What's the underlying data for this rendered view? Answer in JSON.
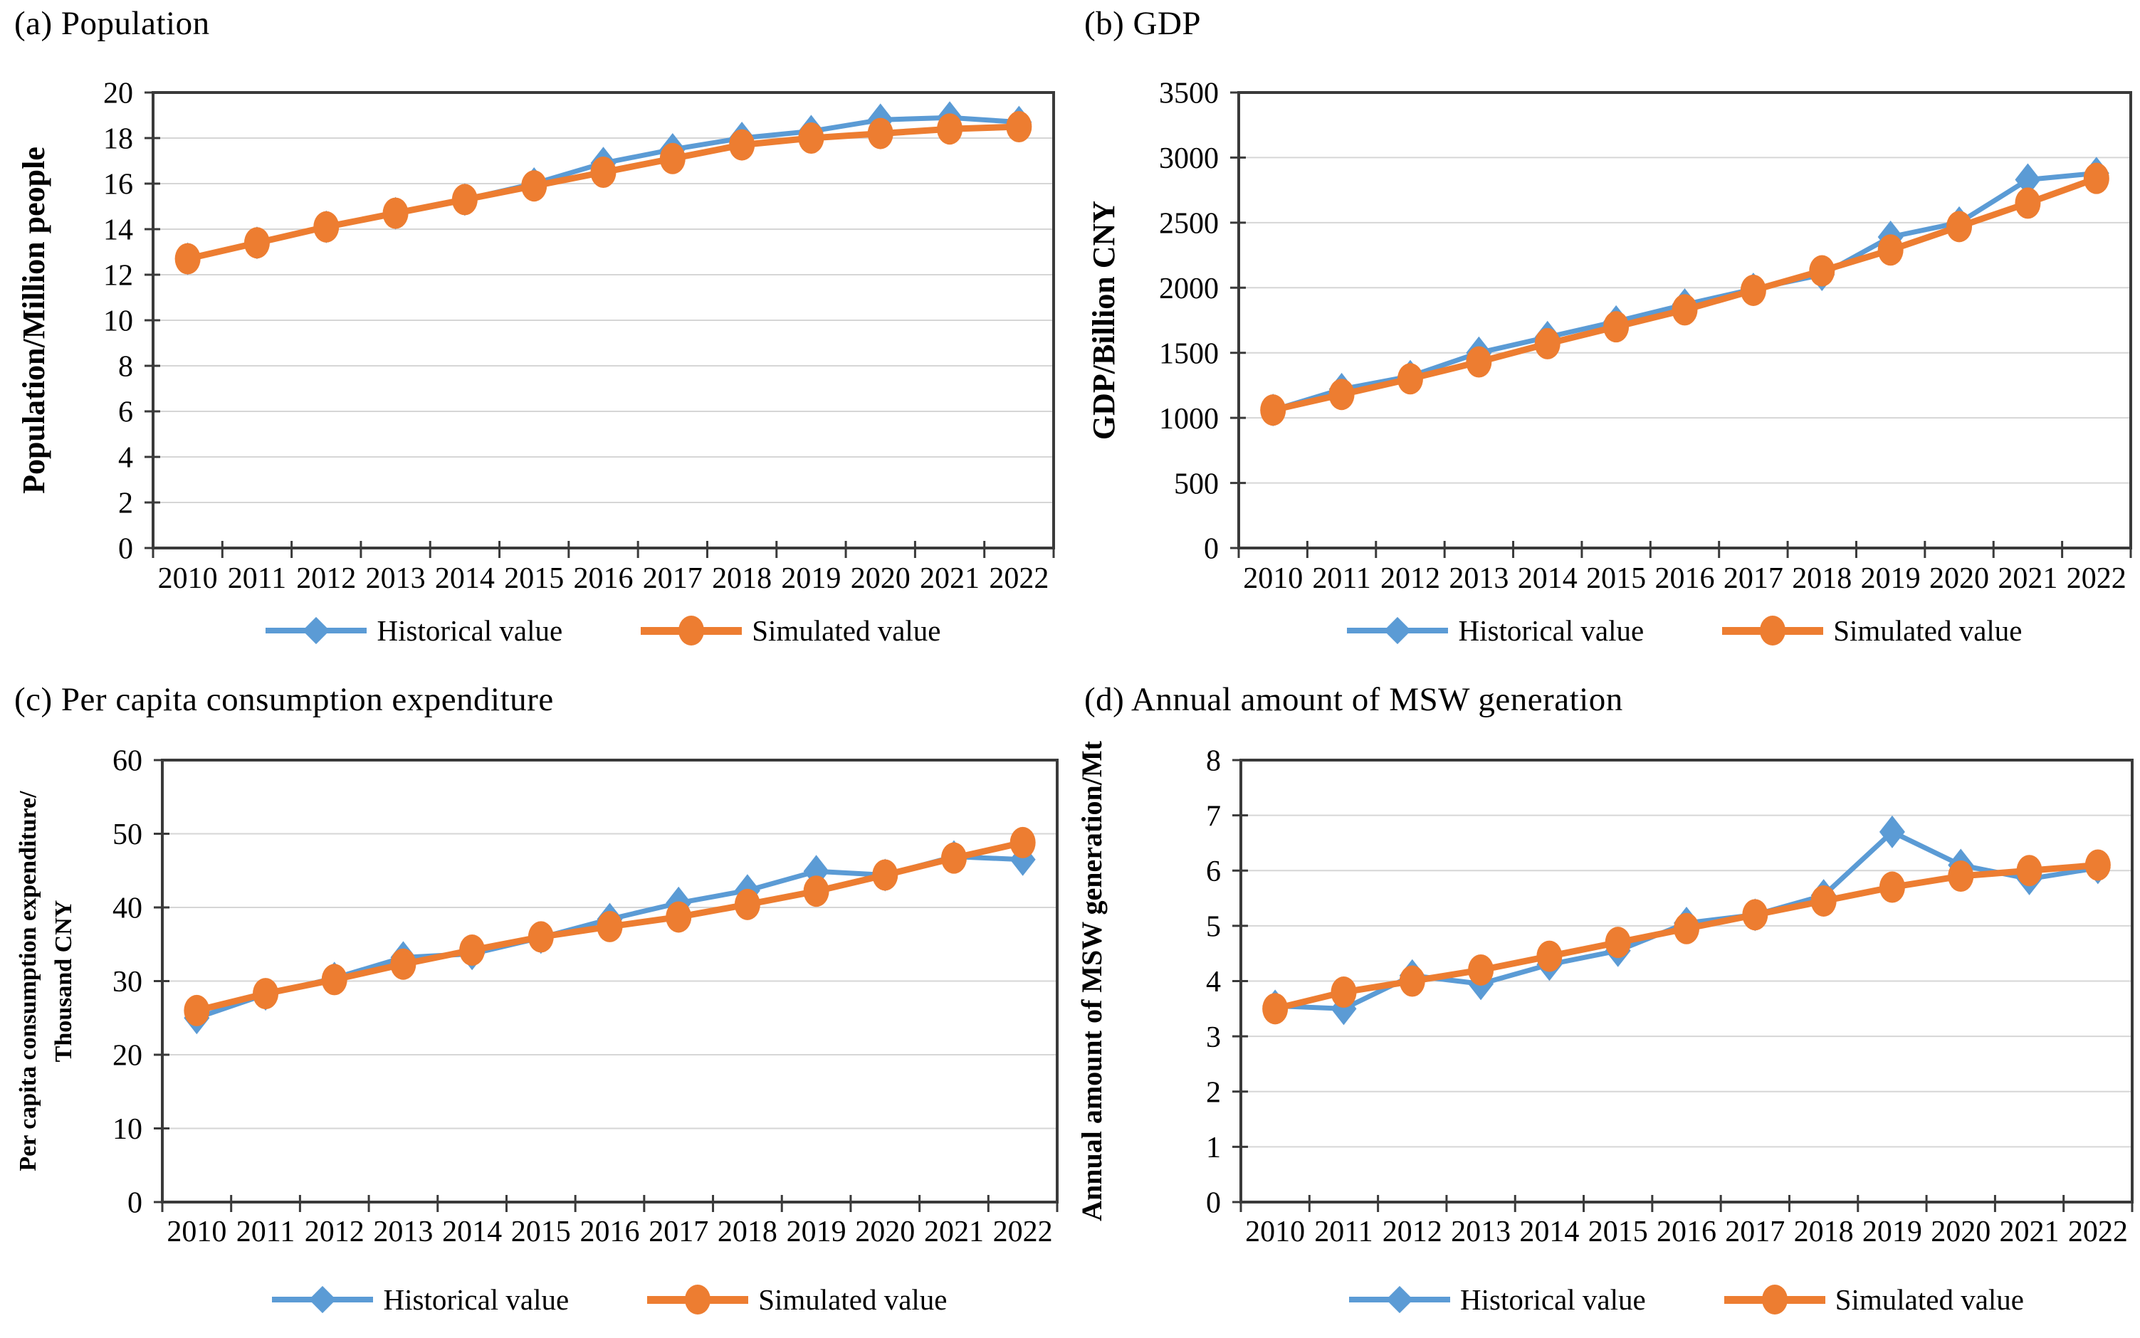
{
  "legend": {
    "historical_label": "Historical value",
    "simulated_label": "Simulated value"
  },
  "colors": {
    "historical": "#5B9BD5",
    "simulated": "#ED7D31",
    "axis": "#3A3A3A",
    "gridline": "#D6D6D6",
    "text": "#000000"
  },
  "chart_data": [
    {
      "id": "population",
      "type": "line",
      "title": "(a) Population",
      "ylabel": "Population/Million people",
      "ylabel_lines": [
        "Population/Million people"
      ],
      "xlabel": "",
      "categories": [
        "2010",
        "2011",
        "2012",
        "2013",
        "2014",
        "2015",
        "2016",
        "2017",
        "2018",
        "2019",
        "2020",
        "2021",
        "2022"
      ],
      "ylim": [
        0,
        20
      ],
      "ytick_step": 2,
      "grid": "horizontal",
      "legend_position": "bottom",
      "series": [
        {
          "name": "Historical value",
          "marker": "diamond",
          "color_key": "historical",
          "values": [
            12.7,
            13.4,
            14.1,
            14.7,
            15.3,
            16.0,
            16.9,
            17.5,
            18.0,
            18.3,
            18.8,
            18.9,
            18.7
          ]
        },
        {
          "name": "Simulated value",
          "marker": "circle",
          "color_key": "simulated",
          "values": [
            12.7,
            13.4,
            14.1,
            14.7,
            15.3,
            15.9,
            16.5,
            17.1,
            17.7,
            18.0,
            18.2,
            18.4,
            18.5
          ]
        }
      ]
    },
    {
      "id": "gdp",
      "type": "line",
      "title": "(b) GDP",
      "ylabel": "GDP/Billion CNY",
      "ylabel_lines": [
        "GDP/Billion CNY"
      ],
      "xlabel": "",
      "categories": [
        "2010",
        "2011",
        "2012",
        "2013",
        "2014",
        "2015",
        "2016",
        "2017",
        "2018",
        "2019",
        "2020",
        "2021",
        "2022"
      ],
      "ylim": [
        0,
        3500
      ],
      "ytick_step": 500,
      "grid": "horizontal",
      "legend_position": "bottom",
      "series": [
        {
          "name": "Historical value",
          "marker": "diamond",
          "color_key": "historical",
          "values": [
            1060,
            1220,
            1320,
            1500,
            1620,
            1740,
            1870,
            1990,
            2100,
            2390,
            2500,
            2830,
            2880
          ]
        },
        {
          "name": "Simulated value",
          "marker": "circle",
          "color_key": "simulated",
          "values": [
            1060,
            1180,
            1300,
            1430,
            1570,
            1700,
            1830,
            1980,
            2130,
            2290,
            2470,
            2650,
            2840
          ]
        }
      ]
    },
    {
      "id": "per-capita-consumption-expenditure",
      "type": "line",
      "title": "(c) Per capita  consumption expenditure",
      "ylabel": "Per capita consumption expenditure/ Thousand CNY",
      "ylabel_lines": [
        "Per capita consumption expenditure/",
        "Thousand CNY"
      ],
      "xlabel": "",
      "categories": [
        "2010",
        "2011",
        "2012",
        "2013",
        "2014",
        "2015",
        "2016",
        "2017",
        "2018",
        "2019",
        "2020",
        "2021",
        "2022"
      ],
      "ylim": [
        0,
        60
      ],
      "ytick_step": 10,
      "grid": "horizontal",
      "legend_position": "bottom",
      "series": [
        {
          "name": "Historical value",
          "marker": "diamond",
          "color_key": "historical",
          "values": [
            25.0,
            28.2,
            30.4,
            33.2,
            33.7,
            35.9,
            38.4,
            40.6,
            42.3,
            44.9,
            44.4,
            46.9,
            46.5
          ]
        },
        {
          "name": "Simulated value",
          "marker": "circle",
          "color_key": "simulated",
          "values": [
            26.0,
            28.3,
            30.2,
            32.3,
            34.2,
            36.0,
            37.4,
            38.7,
            40.4,
            42.2,
            44.4,
            46.7,
            48.8
          ]
        }
      ]
    },
    {
      "id": "msw-generation",
      "type": "line",
      "title": "(d) Annual amount of MSW  generation",
      "ylabel": "Annual  amount of MSW  generation/Mt",
      "ylabel_lines": [
        "Annual  amount of MSW  generation/Mt"
      ],
      "xlabel": "",
      "categories": [
        "2010",
        "2011",
        "2012",
        "2013",
        "2014",
        "2015",
        "2016",
        "2017",
        "2018",
        "2019",
        "2020",
        "2021",
        "2022"
      ],
      "ylim": [
        0,
        8
      ],
      "ytick_step": 1,
      "grid": "horizontal",
      "legend_position": "bottom",
      "series": [
        {
          "name": "Historical value",
          "marker": "diamond",
          "color_key": "historical",
          "values": [
            3.55,
            3.5,
            4.1,
            3.95,
            4.3,
            4.55,
            5.05,
            5.2,
            5.55,
            6.7,
            6.1,
            5.85,
            6.05
          ]
        },
        {
          "name": "Simulated value",
          "marker": "circle",
          "color_key": "simulated",
          "values": [
            3.5,
            3.8,
            4.0,
            4.2,
            4.45,
            4.7,
            4.95,
            5.2,
            5.45,
            5.7,
            5.9,
            6.0,
            6.1
          ]
        }
      ]
    }
  ]
}
